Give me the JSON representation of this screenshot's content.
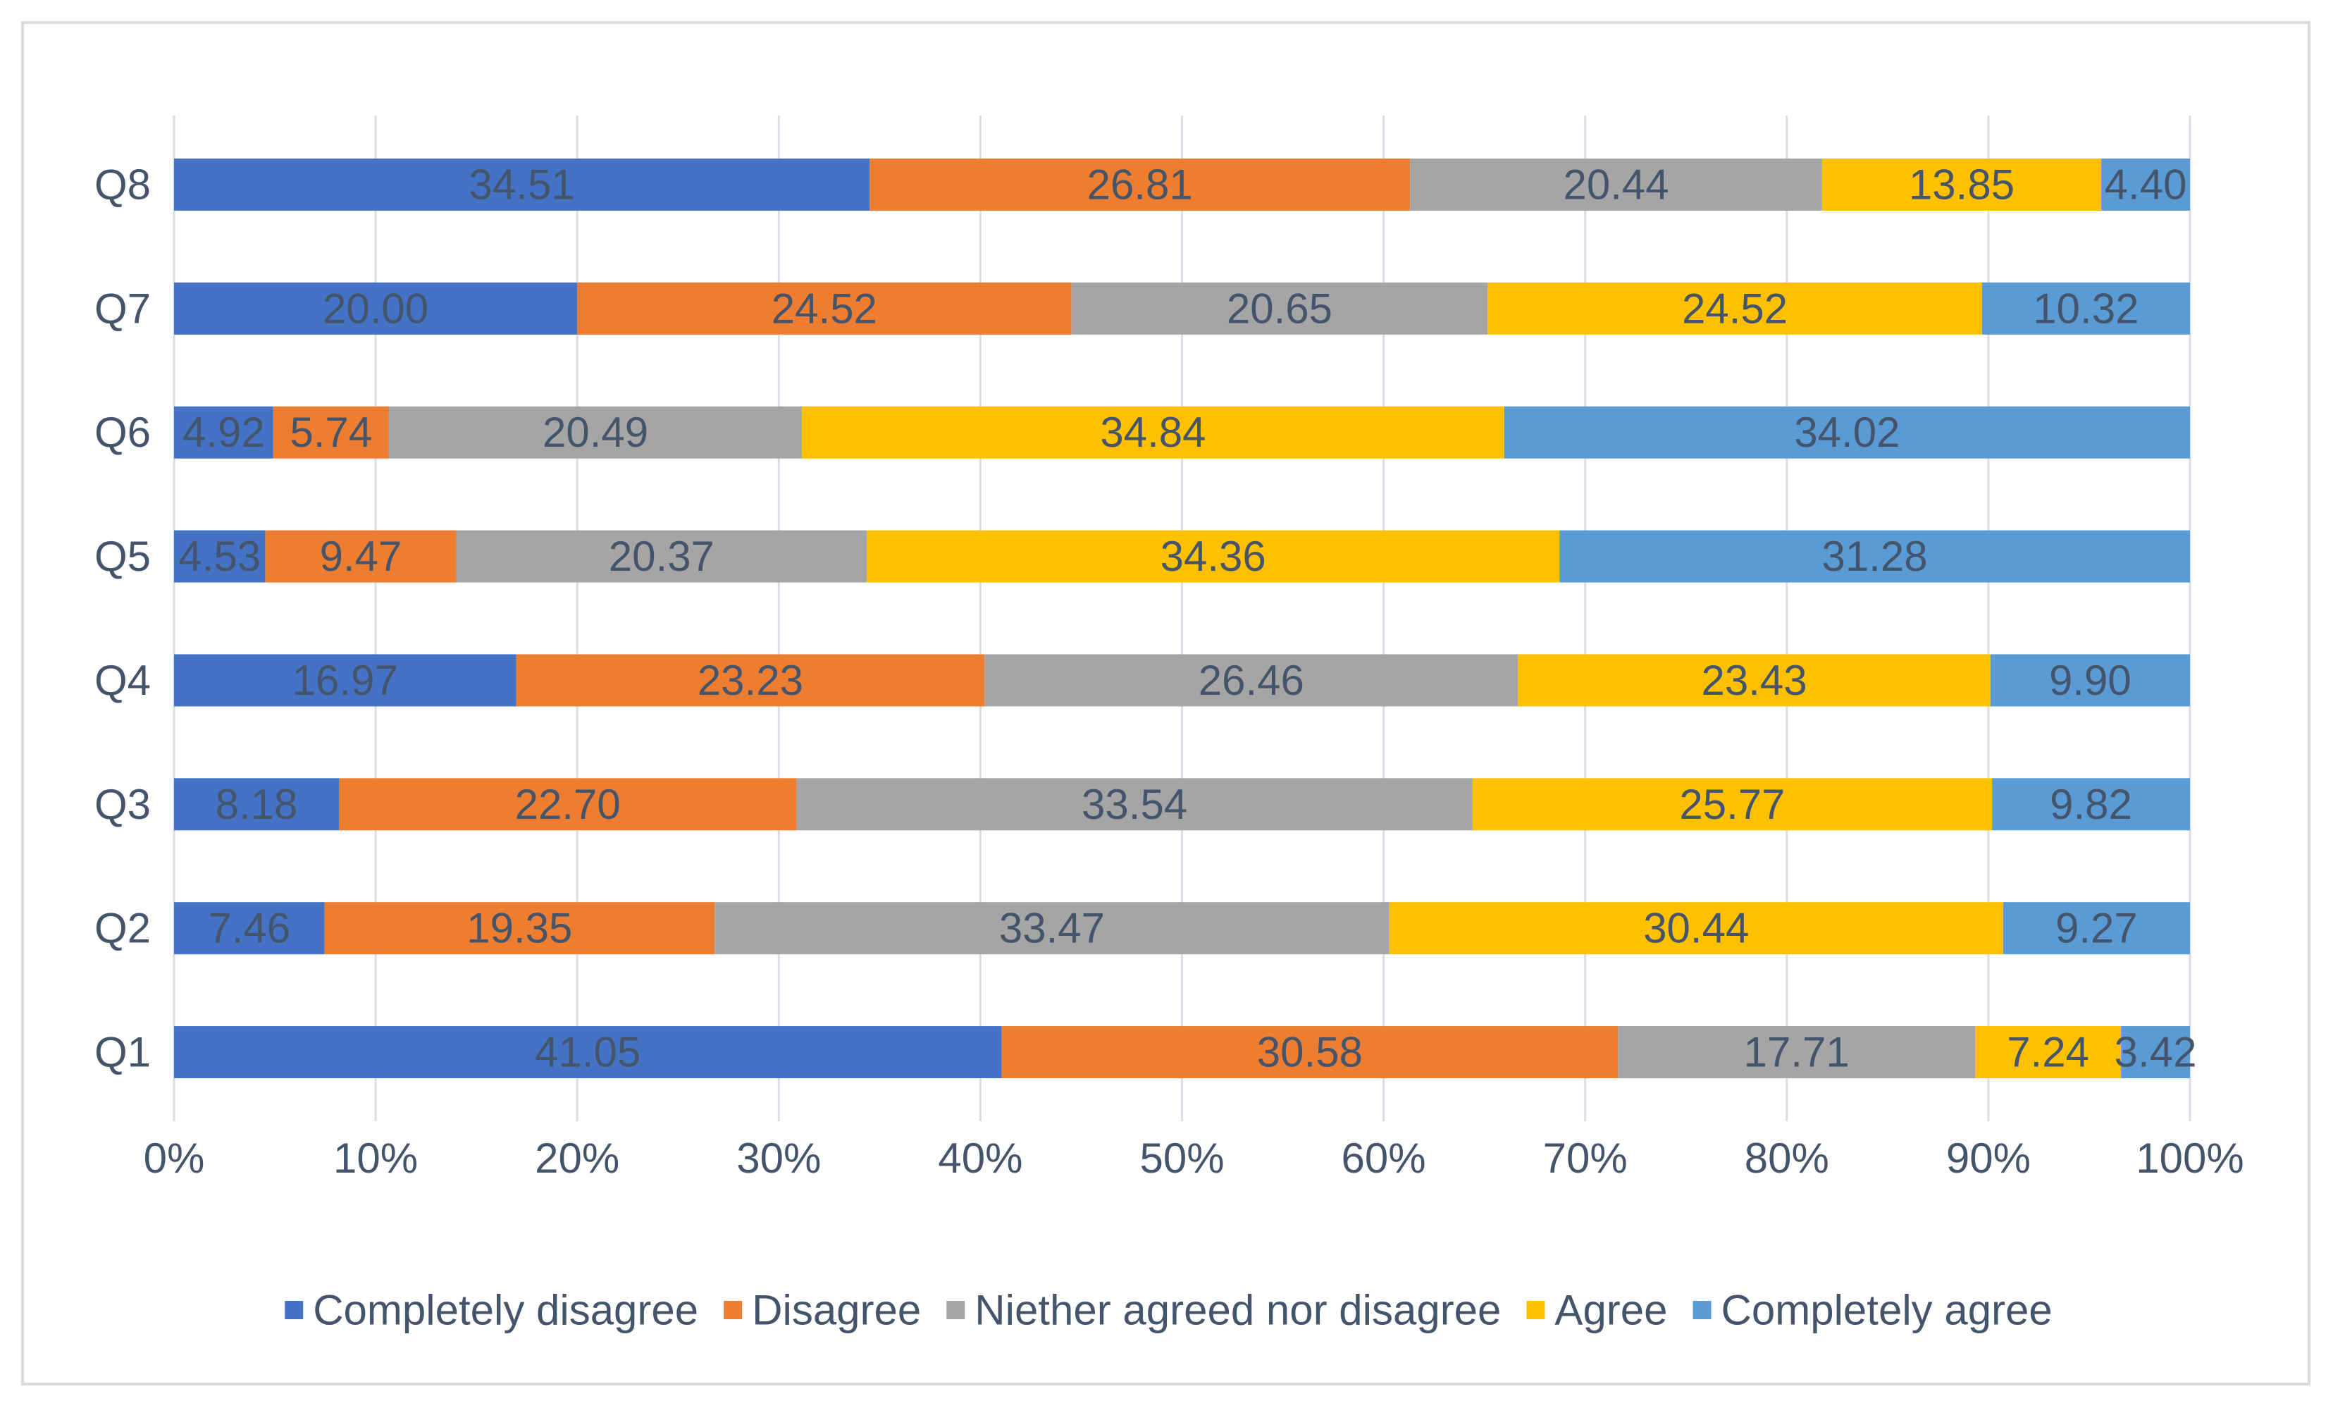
{
  "chart_data": {
    "type": "bar",
    "orientation": "horizontal",
    "stacked": "percent",
    "title": "",
    "xlabel": "",
    "ylabel": "",
    "xlim": [
      0,
      100
    ],
    "x_ticks": [
      "0%",
      "10%",
      "20%",
      "30%",
      "40%",
      "50%",
      "60%",
      "70%",
      "80%",
      "90%",
      "100%"
    ],
    "grid": true,
    "legend_position": "bottom",
    "categories": [
      "Q1",
      "Q2",
      "Q3",
      "Q4",
      "Q5",
      "Q6",
      "Q7",
      "Q8"
    ],
    "series": [
      {
        "name": "Completely disagree",
        "color": "#4472C4",
        "values": [
          41.05,
          7.46,
          8.18,
          16.97,
          4.53,
          4.92,
          20.0,
          34.51
        ]
      },
      {
        "name": "Disagree",
        "color": "#ED7D31",
        "values": [
          30.58,
          19.35,
          22.7,
          23.23,
          9.47,
          5.74,
          24.52,
          26.81
        ]
      },
      {
        "name": "Niether agreed nor disagree",
        "color": "#A5A5A5",
        "values": [
          17.71,
          33.47,
          33.54,
          26.46,
          20.37,
          20.49,
          20.65,
          20.44
        ]
      },
      {
        "name": "Agree",
        "color": "#FFC000",
        "values": [
          7.24,
          30.44,
          25.77,
          23.43,
          34.36,
          34.84,
          24.52,
          13.85
        ]
      },
      {
        "name": "Completely agree",
        "color": "#5B9BD5",
        "values": [
          3.42,
          9.27,
          9.82,
          9.9,
          31.28,
          34.02,
          10.32,
          4.4
        ]
      }
    ],
    "data_labels": [
      [
        "41.05",
        "7.46",
        "8.18",
        "16.97",
        "4.53",
        "4.92",
        "20.00",
        "34.51"
      ],
      [
        "30.58",
        "19.35",
        "22.70",
        "23.23",
        "9.47",
        "5.74",
        "24.52",
        "26.81"
      ],
      [
        "17.71",
        "33.47",
        "33.54",
        "26.46",
        "20.37",
        "20.49",
        "20.65",
        "20.44"
      ],
      [
        "7.24",
        "30.44",
        "25.77",
        "23.43",
        "34.36",
        "34.84",
        "24.52",
        "13.85"
      ],
      [
        "3.42",
        "9.27",
        "9.82",
        "9.90",
        "31.28",
        "34.02",
        "10.32",
        "4.40"
      ]
    ],
    "data_label_color": "#44546A",
    "axis_label_color": "#44546A",
    "grid_color": "#D9DEE6"
  }
}
